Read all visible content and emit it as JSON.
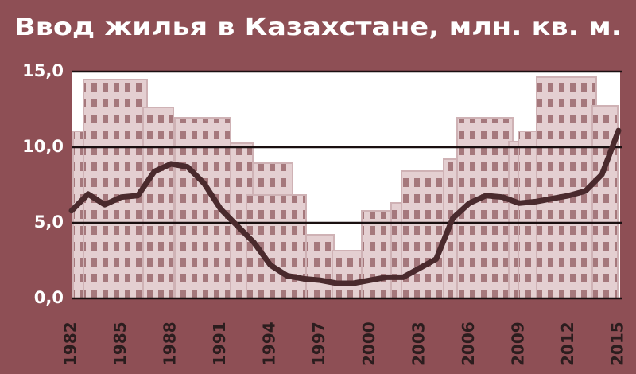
{
  "chart_data": {
    "type": "line",
    "title": "Ввод жилья в Казахстане, млн. кв. м.",
    "x": [
      1982,
      1983,
      1984,
      1985,
      1986,
      1987,
      1988,
      1989,
      1990,
      1991,
      1992,
      1993,
      1994,
      1995,
      1996,
      1997,
      1998,
      1999,
      2000,
      2001,
      2002,
      2003,
      2004,
      2005,
      2006,
      2007,
      2008,
      2009,
      2010,
      2011,
      2012,
      2013,
      2014,
      2015
    ],
    "series": [
      {
        "color": "#4a2a2d",
        "values": [
          5.8,
          6.9,
          6.2,
          6.7,
          6.8,
          8.4,
          8.9,
          8.7,
          7.6,
          5.9,
          4.8,
          3.7,
          2.2,
          1.5,
          1.3,
          1.2,
          1.0,
          1.0,
          1.2,
          1.4,
          1.4,
          2.0,
          2.6,
          5.3,
          6.3,
          6.8,
          6.7,
          6.3,
          6.4,
          6.6,
          6.8,
          7.1,
          8.2,
          11.1
        ]
      }
    ],
    "xlim": [
      1982,
      2015
    ],
    "xticks": [
      1982,
      1985,
      1988,
      1991,
      1994,
      1997,
      2000,
      2003,
      2006,
      2009,
      2012,
      2015
    ],
    "ylim": [
      0,
      15
    ],
    "yticks": [
      {
        "value": 0,
        "label": "0,0"
      },
      {
        "value": 5,
        "label": "5,0"
      },
      {
        "value": 10,
        "label": "10,0"
      },
      {
        "value": 15,
        "label": "15,0"
      }
    ],
    "grid": true
  }
}
